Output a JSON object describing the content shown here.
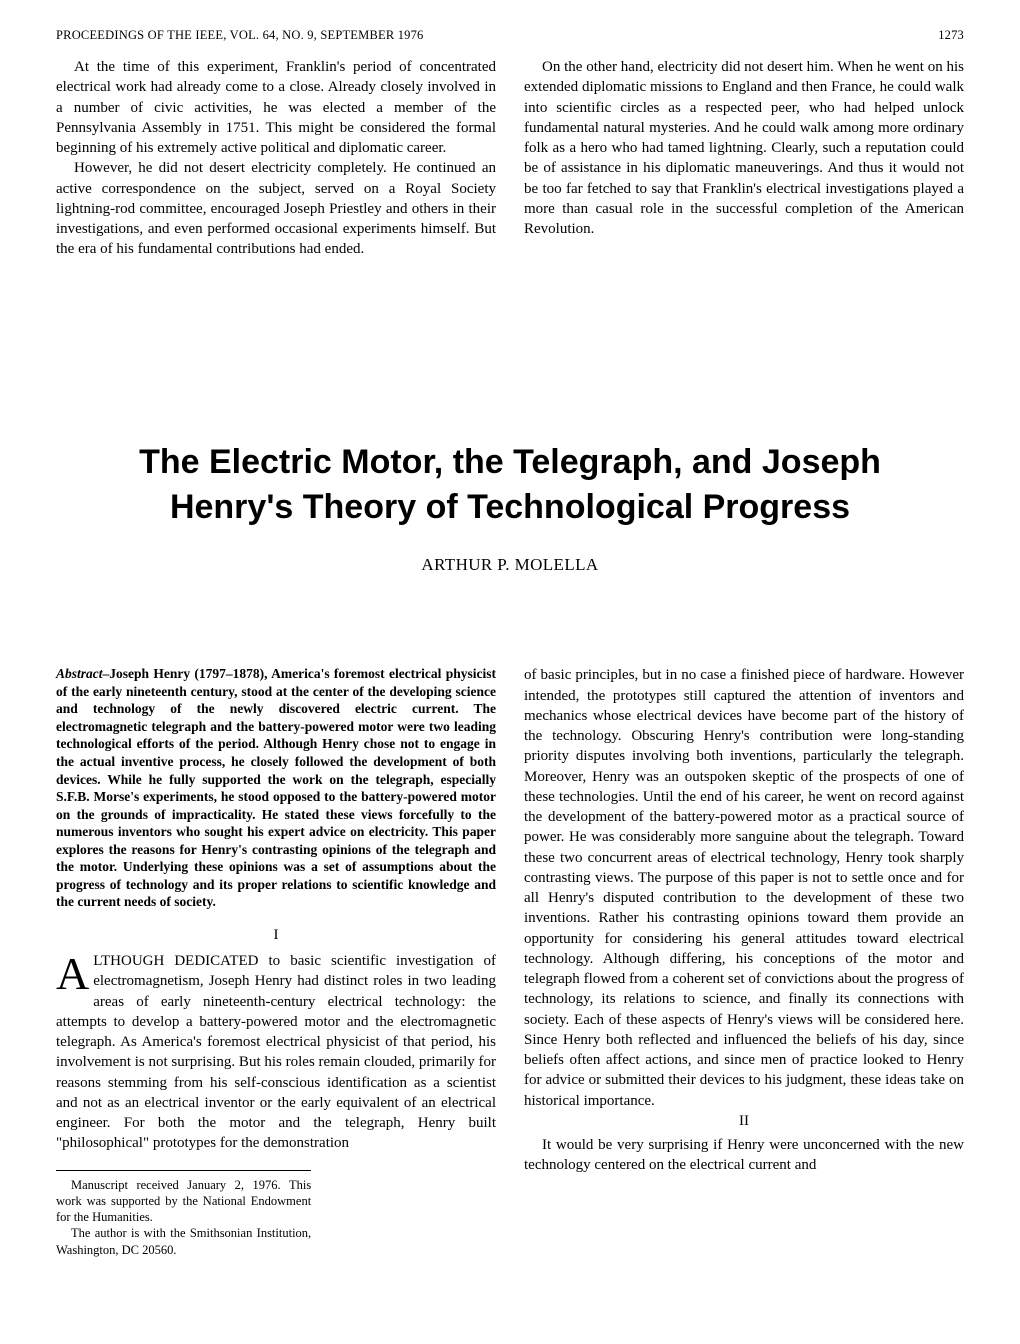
{
  "header": {
    "journal": "PROCEEDINGS OF THE IEEE, VOL. 64, NO. 9, SEPTEMBER 1976",
    "page_number": "1273"
  },
  "top_article": {
    "paragraphs": [
      "At the time of this experiment, Franklin's period of concentrated electrical work had already come to a close. Already closely involved in a number of civic activities, he was elected a member of the Pennsylvania Assembly in 1751. This might be considered the formal beginning of his extremely active political and diplomatic career.",
      "However, he did not desert electricity completely. He continued an active correspondence on the subject, served on a Royal Society lightning-rod committee, encouraged Joseph Priestley and others in their investigations, and even performed occasional experiments himself. But the era of his fundamental contributions had ended.",
      "On the other hand, electricity did not desert him. When he went on his extended diplomatic missions to England and then France, he could walk into scientific circles as a respected peer, who had helped unlock fundamental natural mysteries. And he could walk among more ordinary folk as a hero who had tamed lightning. Clearly, such a reputation could be of assistance in his diplomatic maneuverings. And thus it would not be too far fetched to say that Franklin's electrical investigations played a more than casual role in the successful completion of the American Revolution."
    ]
  },
  "article": {
    "title": "The Electric Motor, the Telegraph, and Joseph Henry's Theory of Technological Progress",
    "author": "ARTHUR P. MOLELLA",
    "abstract_lead": "Abstract",
    "abstract_body": "–Joseph Henry (1797–1878), America's foremost electrical physicist of the early nineteenth century, stood at the center of the developing science and technology of the newly discovered electric current. The electromagnetic telegraph and the battery-powered motor were two leading technological efforts of the period. Although Henry chose not to engage in the actual inventive process, he closely followed the development of both devices. While he fully supported the work on the telegraph, especially S.F.B. Morse's experiments, he stood opposed to the battery-powered motor on the grounds of impracticality. He stated these views forcefully to the numerous inventors who sought his expert advice on electricity. This paper explores the reasons for Henry's contrasting opinions of the telegraph and the motor. Underlying these opinions was a set of assumptions about the progress of technology and its proper relations to scientific knowledge and the current needs of society.",
    "section1_num": "I",
    "section1_dropcap": "A",
    "section1_para1": "LTHOUGH DEDICATED to basic scientific investigation of electromagnetism, Joseph Henry had distinct roles in two leading areas of early nineteenth-century electrical technology: the attempts to develop a battery-powered motor and the electromagnetic telegraph. As America's foremost electrical physicist of that period, his involvement is not surprising. But his roles remain clouded, primarily for reasons stemming from his self-conscious identification as a scientist and not as an electrical inventor or the early equivalent of an electrical engineer. For both the motor and the telegraph, Henry built \"philosophical\" prototypes for the demonstration",
    "right_para": "of basic principles, but in no case a finished piece of hardware. However intended, the prototypes still captured the attention of inventors and mechanics whose electrical devices have become part of the history of the technology. Obscuring Henry's contribution were long-standing priority disputes involving both inventions, particularly the telegraph. Moreover, Henry was an outspoken skeptic of the prospects of one of these technologies. Until the end of his career, he went on record against the development of the battery-powered motor as a practical source of power. He was considerably more sanguine about the telegraph. Toward these two concurrent areas of electrical technology, Henry took sharply contrasting views. The purpose of this paper is not to settle once and for all Henry's disputed contribution to the development of these two inventions. Rather his contrasting opinions toward them provide an opportunity for considering his general attitudes toward electrical technology. Although differing, his conceptions of the motor and telegraph flowed from a coherent set of convictions about the progress of technology, its relations to science, and finally its connections with society. Each of these aspects of Henry's views will be considered here. Since Henry both reflected and influenced the beliefs of his day, since beliefs often affect actions, and since men of practice looked to Henry for advice or submitted their devices to his judgment, these ideas take on historical importance.",
    "section2_num": "II",
    "section2_para": "It would be very surprising if Henry were unconcerned with the new technology centered on the electrical current and",
    "footnote1": "Manuscript received January 2, 1976. This work was supported by the National Endowment for the Humanities.",
    "footnote2": "The author is with the Smithsonian Institution, Washington, DC 20560."
  }
}
